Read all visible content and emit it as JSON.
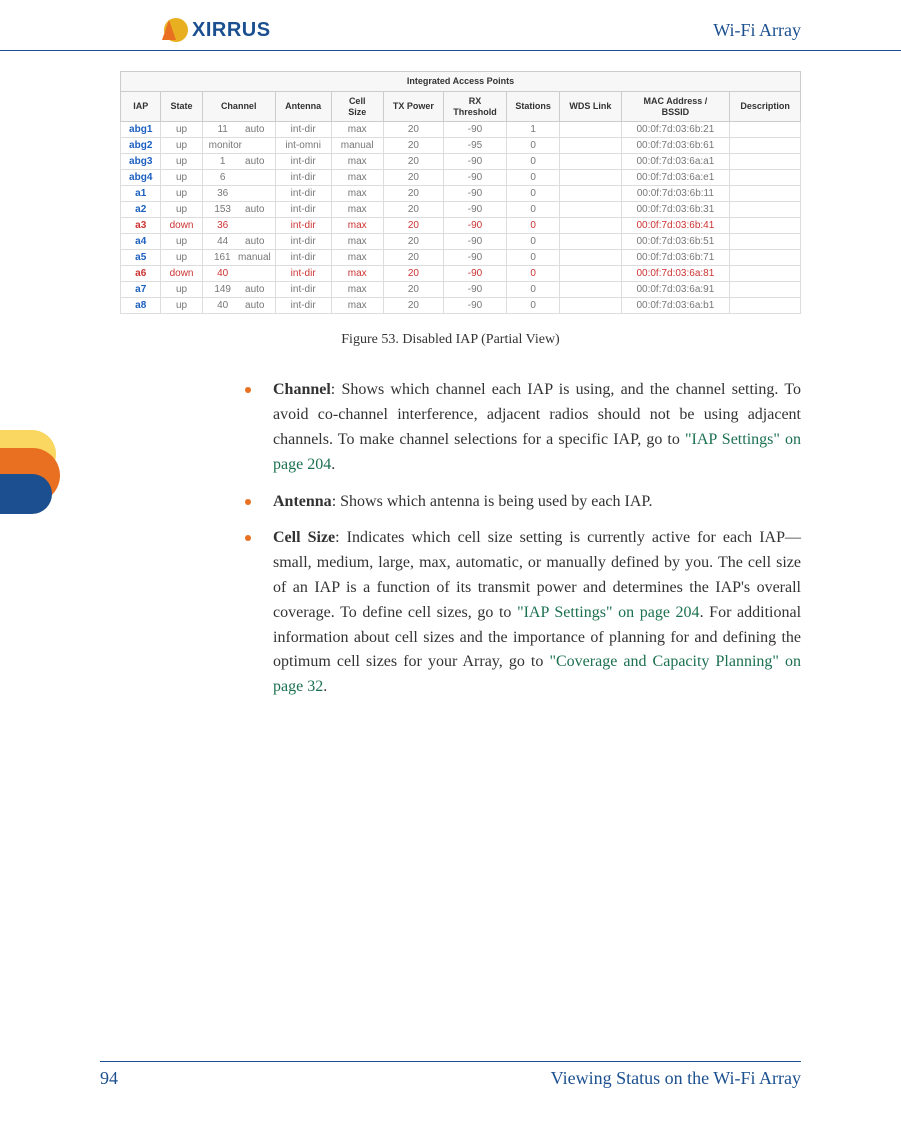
{
  "header": {
    "logo_text": "XIRRUS",
    "title": "Wi-Fi Array"
  },
  "table": {
    "title": "Integrated Access Points",
    "title_bg": "#1b4f8f",
    "title_color": "#ffffff",
    "header_bg": "#f7f7f7",
    "border_color": "#cccccc",
    "normal_text_color": "#777777",
    "iap_link_color": "#1b5fbf",
    "down_color": "#cc3333",
    "font_family": "Arial",
    "font_size_pt": 8,
    "columns": [
      "IAP",
      "State",
      "Channel",
      "Antenna",
      "Cell Size",
      "TX Power",
      "RX Threshold",
      "Stations",
      "WDS Link",
      "MAC Address / BSSID",
      "Description"
    ],
    "rows": [
      {
        "iap": "abg1",
        "state": "up",
        "ch": "11",
        "chmode": "auto",
        "ant": "int-dir",
        "cell": "max",
        "tx": "20",
        "rx": "-90",
        "sta": "1",
        "wds": "",
        "mac": "00:0f:7d:03:6b:21",
        "desc": "",
        "down": false
      },
      {
        "iap": "abg2",
        "state": "up",
        "ch": "monitor",
        "chmode": "",
        "ant": "int-omni",
        "cell": "manual",
        "tx": "20",
        "rx": "-95",
        "sta": "0",
        "wds": "",
        "mac": "00:0f:7d:03:6b:61",
        "desc": "",
        "down": false,
        "monitor": true
      },
      {
        "iap": "abg3",
        "state": "up",
        "ch": "1",
        "chmode": "auto",
        "ant": "int-dir",
        "cell": "max",
        "tx": "20",
        "rx": "-90",
        "sta": "0",
        "wds": "",
        "mac": "00:0f:7d:03:6a:a1",
        "desc": "",
        "down": false
      },
      {
        "iap": "abg4",
        "state": "up",
        "ch": "6",
        "chmode": "",
        "ant": "int-dir",
        "cell": "max",
        "tx": "20",
        "rx": "-90",
        "sta": "0",
        "wds": "",
        "mac": "00:0f:7d:03:6a:e1",
        "desc": "",
        "down": false
      },
      {
        "iap": "a1",
        "state": "up",
        "ch": "36",
        "chmode": "",
        "ant": "int-dir",
        "cell": "max",
        "tx": "20",
        "rx": "-90",
        "sta": "0",
        "wds": "",
        "mac": "00:0f:7d:03:6b:11",
        "desc": "",
        "down": false
      },
      {
        "iap": "a2",
        "state": "up",
        "ch": "153",
        "chmode": "auto",
        "ant": "int-dir",
        "cell": "max",
        "tx": "20",
        "rx": "-90",
        "sta": "0",
        "wds": "",
        "mac": "00:0f:7d:03:6b:31",
        "desc": "",
        "down": false
      },
      {
        "iap": "a3",
        "state": "down",
        "ch": "36",
        "chmode": "",
        "ant": "int-dir",
        "cell": "max",
        "tx": "20",
        "rx": "-90",
        "sta": "0",
        "wds": "",
        "mac": "00:0f:7d:03:6b:41",
        "desc": "",
        "down": true
      },
      {
        "iap": "a4",
        "state": "up",
        "ch": "44",
        "chmode": "auto",
        "ant": "int-dir",
        "cell": "max",
        "tx": "20",
        "rx": "-90",
        "sta": "0",
        "wds": "",
        "mac": "00:0f:7d:03:6b:51",
        "desc": "",
        "down": false
      },
      {
        "iap": "a5",
        "state": "up",
        "ch": "161",
        "chmode": "manual",
        "ant": "int-dir",
        "cell": "max",
        "tx": "20",
        "rx": "-90",
        "sta": "0",
        "wds": "",
        "mac": "00:0f:7d:03:6b:71",
        "desc": "",
        "down": false
      },
      {
        "iap": "a6",
        "state": "down",
        "ch": "40",
        "chmode": "",
        "ant": "int-dir",
        "cell": "max",
        "tx": "20",
        "rx": "-90",
        "sta": "0",
        "wds": "",
        "mac": "00:0f:7d:03:6a:81",
        "desc": "",
        "down": true
      },
      {
        "iap": "a7",
        "state": "up",
        "ch": "149",
        "chmode": "auto",
        "ant": "int-dir",
        "cell": "max",
        "tx": "20",
        "rx": "-90",
        "sta": "0",
        "wds": "",
        "mac": "00:0f:7d:03:6a:91",
        "desc": "",
        "down": false
      },
      {
        "iap": "a8",
        "state": "up",
        "ch": "40",
        "chmode": "auto",
        "ant": "int-dir",
        "cell": "max",
        "tx": "20",
        "rx": "-90",
        "sta": "0",
        "wds": "",
        "mac": "00:0f:7d:03:6a:b1",
        "desc": "",
        "down": false
      }
    ]
  },
  "figure_caption": "Figure 53. Disabled IAP (Partial View)",
  "bullets": [
    {
      "bold": "Channel",
      "text": ": Shows which channel each IAP is using, and the channel setting. To avoid co-channel interference, adjacent radios should not be using adjacent channels. To make channel selections for a specific IAP, go to ",
      "link": "\"IAP Settings\" on page 204",
      "tail": "."
    },
    {
      "bold": "Antenna",
      "text": ": Shows which antenna is being used by each IAP.",
      "link": "",
      "tail": ""
    },
    {
      "bold": "Cell Size",
      "text": ": Indicates which cell size setting is currently active for each IAP—small, medium, large, max, automatic, or manually defined by you. The cell size of an IAP is a function of its transmit power and determines the IAP's overall coverage. To define cell sizes, go to ",
      "link": "\"IAP Settings\" on page 204",
      "tail": ". For additional information about cell sizes and the importance of planning for and defining the optimum cell sizes for your Array, go to ",
      "link2": "\"Coverage and Capacity Planning\" on page 32",
      "tail2": "."
    }
  ],
  "footer": {
    "page": "94",
    "section": "Viewing Status on the Wi-Fi Array"
  },
  "colors": {
    "brand_blue": "#1b4f8f",
    "bullet_orange": "#e87020",
    "link_green": "#1b7050",
    "tab_yellow": "#f9d760"
  }
}
